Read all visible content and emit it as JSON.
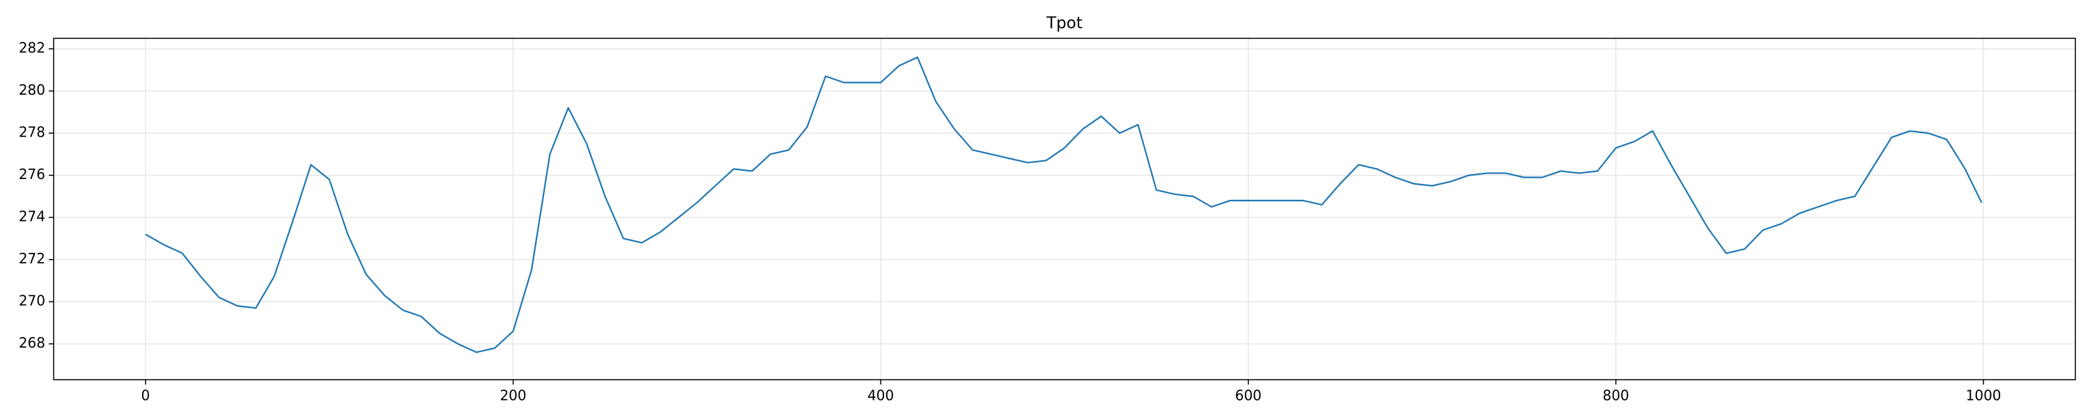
{
  "chart_data": {
    "type": "line",
    "title": "Tpot",
    "color": "#1f77b4",
    "grid": true,
    "xlim": [
      -50,
      1050
    ],
    "xticks": [
      0,
      200,
      400,
      600,
      800,
      1000
    ],
    "ylim": [
      266.3,
      282.5
    ],
    "yticks": [
      268,
      270,
      272,
      274,
      276,
      278,
      280,
      282
    ],
    "x": [
      0,
      10,
      20,
      30,
      40,
      50,
      60,
      70,
      80,
      90,
      100,
      110,
      120,
      130,
      140,
      150,
      160,
      170,
      180,
      190,
      200,
      210,
      220,
      230,
      240,
      250,
      260,
      270,
      280,
      290,
      300,
      310,
      320,
      330,
      340,
      350,
      360,
      370,
      380,
      390,
      400,
      410,
      420,
      430,
      440,
      450,
      460,
      470,
      480,
      490,
      500,
      510,
      520,
      530,
      540,
      550,
      560,
      570,
      580,
      590,
      600,
      610,
      620,
      630,
      640,
      650,
      660,
      670,
      680,
      690,
      700,
      710,
      720,
      730,
      740,
      750,
      760,
      770,
      780,
      790,
      800,
      810,
      820,
      830,
      840,
      850,
      860,
      870,
      880,
      890,
      900,
      910,
      920,
      930,
      940,
      950,
      960,
      970,
      980,
      990,
      999
    ],
    "values": [
      273.2,
      272.7,
      272.3,
      271.2,
      270.2,
      269.8,
      269.7,
      271.2,
      273.8,
      276.5,
      275.8,
      273.2,
      271.3,
      270.3,
      269.6,
      269.3,
      268.5,
      268.0,
      267.6,
      267.8,
      268.6,
      271.5,
      277.0,
      279.2,
      277.5,
      275.0,
      273.0,
      272.8,
      273.3,
      274.0,
      274.7,
      275.5,
      276.3,
      276.2,
      277.0,
      277.2,
      278.3,
      280.7,
      280.4,
      280.4,
      280.4,
      281.2,
      281.6,
      279.5,
      278.2,
      277.2,
      277.0,
      276.8,
      276.6,
      276.7,
      277.3,
      278.2,
      278.8,
      278.0,
      278.4,
      275.3,
      275.1,
      275.0,
      274.5,
      274.8,
      274.8,
      274.8,
      274.8,
      274.8,
      274.6,
      275.6,
      276.5,
      276.3,
      275.9,
      275.6,
      275.5,
      275.7,
      276.0,
      276.1,
      276.1,
      275.9,
      275.9,
      276.2,
      276.1,
      276.2,
      277.3,
      277.6,
      278.1,
      276.5,
      275.0,
      273.5,
      272.3,
      272.5,
      273.4,
      273.7,
      274.2,
      274.5,
      274.8,
      275.0,
      276.4,
      277.8,
      278.1,
      278.0,
      277.7,
      276.3,
      274.7
    ]
  }
}
